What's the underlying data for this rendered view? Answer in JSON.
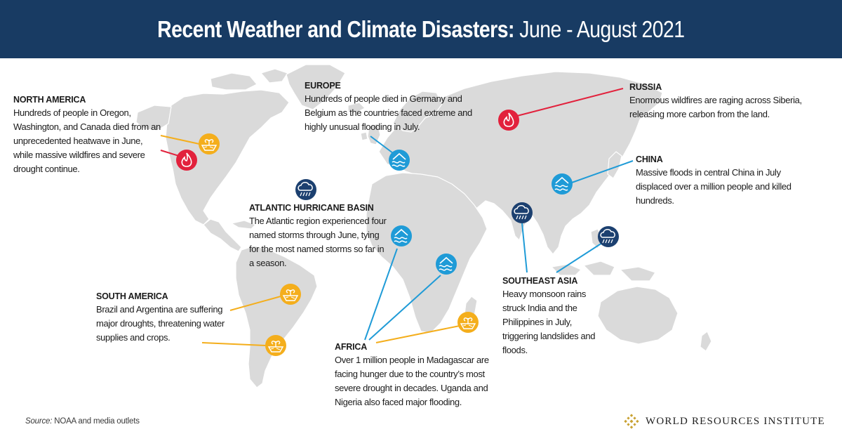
{
  "header": {
    "title_bold": "Recent Weather and Climate Disasters:",
    "title_light": "June - August 2021"
  },
  "regions": {
    "north_america": {
      "title": "NORTH AMERICA",
      "description": "Hundreds of people in Oregon, Washington, and Canada died from an unprecedented heatwave in June, while massive wildfires and severe drought continue."
    },
    "europe": {
      "title": "EUROPE",
      "description": "Hundreds of people died in Germany and Belgium as the countries faced extreme and highly unusual flooding in July."
    },
    "russia": {
      "title": "RUSSIA",
      "description": "Enormous wildfires are raging across Siberia, releasing more carbon from the land."
    },
    "china": {
      "title": "CHINA",
      "description": "Massive floods in central China in July displaced over a million people and killed hundreds."
    },
    "atlantic": {
      "title": "ATLANTIC HURRICANE BASIN",
      "description": "The Atlantic region experienced four named storms through June, tying for the most named storms so far in a season."
    },
    "south_america": {
      "title": "SOUTH AMERICA",
      "description": "Brazil and Argentina are suffering major droughts, threatening water supplies and crops."
    },
    "africa": {
      "title": "AFRICA",
      "description": "Over 1 million people in Madagascar are facing hunger due to the country’s most severe drought in decades. Uganda and Nigeria also faced major flooding."
    },
    "southeast_asia": {
      "title": "SOUTHEAST ASIA",
      "description": "Heavy monsoon rains struck India and the Philippines in July, triggering landslides and floods."
    }
  },
  "source": {
    "label": "Source:",
    "text": "NOAA and media outlets"
  },
  "footer": {
    "org_name": "WORLD RESOURCES INSTITUTE"
  },
  "colors": {
    "header_bg": "#183b63",
    "landmass": "#dadada",
    "wildfire": "#e2213c",
    "drought": "#f4ae1c",
    "flood": "#1f9bd7",
    "storm": "#1c4070",
    "line_red": "#e2213c",
    "line_yellow": "#f4ae1c",
    "line_blue": "#1f9bd7",
    "logo_gold": "#c9a233"
  },
  "markers": [
    {
      "id": "na-drought",
      "type": "drought-icon",
      "color": "drought"
    },
    {
      "id": "na-fire",
      "type": "wildfire-icon",
      "color": "wildfire"
    },
    {
      "id": "eu-flood",
      "type": "flood-icon",
      "color": "flood"
    },
    {
      "id": "ru-fire",
      "type": "wildfire-icon",
      "color": "wildfire"
    },
    {
      "id": "cn-flood",
      "type": "flood-icon",
      "color": "flood"
    },
    {
      "id": "atl-storm",
      "type": "storm-icon",
      "color": "storm"
    },
    {
      "id": "nigeria-flood",
      "type": "flood-icon",
      "color": "flood"
    },
    {
      "id": "uganda-flood",
      "type": "flood-icon",
      "color": "flood"
    },
    {
      "id": "madagascar-drought",
      "type": "drought-icon",
      "color": "drought"
    },
    {
      "id": "brazil-drought",
      "type": "drought-icon",
      "color": "drought"
    },
    {
      "id": "argentina-drought",
      "type": "drought-icon",
      "color": "drought"
    },
    {
      "id": "india-storm",
      "type": "storm-icon",
      "color": "storm"
    },
    {
      "id": "philippines-storm",
      "type": "storm-icon",
      "color": "storm"
    }
  ]
}
